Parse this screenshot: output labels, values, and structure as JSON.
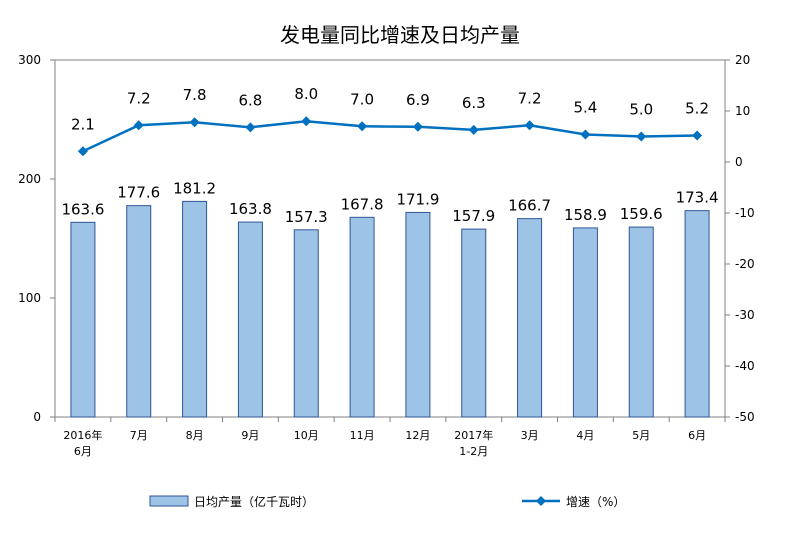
{
  "chart_data": {
    "type": "bar",
    "title": "发电量同比增速及日均产量",
    "categories": [
      [
        "2016年",
        "6月"
      ],
      [
        "7月"
      ],
      [
        "8月"
      ],
      [
        "9月"
      ],
      [
        "10月"
      ],
      [
        "11月"
      ],
      [
        "12月"
      ],
      [
        "2017年",
        "1-2月"
      ],
      [
        "3月"
      ],
      [
        "4月"
      ],
      [
        "5月"
      ],
      [
        "6月"
      ]
    ],
    "left_axis": {
      "min": 0,
      "max": 300,
      "ticks": [
        0,
        100,
        200,
        300
      ]
    },
    "right_axis": {
      "min": -50,
      "max": 20,
      "ticks": [
        20,
        10,
        0,
        -10,
        -20,
        -30,
        -40,
        -50
      ]
    },
    "series": [
      {
        "name": "日均产量（亿千瓦时）",
        "type": "bar",
        "axis": "left",
        "color": "#9DC3E6",
        "stroke": "#2F5597",
        "values": [
          163.6,
          177.6,
          181.2,
          163.8,
          157.3,
          167.8,
          171.9,
          157.9,
          166.7,
          158.9,
          159.6,
          173.4
        ]
      },
      {
        "name": "增速（%）",
        "type": "line",
        "axis": "right",
        "color": "#0070C0",
        "marker": "diamond",
        "values": [
          2.1,
          7.2,
          7.8,
          6.8,
          8.0,
          7.0,
          6.9,
          6.3,
          7.2,
          5.4,
          5.0,
          5.2
        ]
      }
    ],
    "legend_position": "bottom",
    "grid": false
  }
}
